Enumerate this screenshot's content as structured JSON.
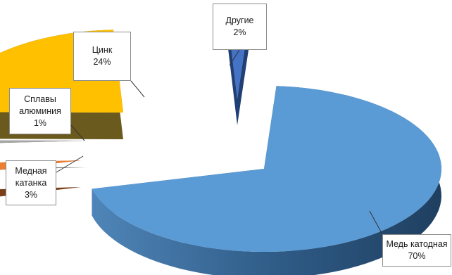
{
  "chart_data": {
    "type": "pie",
    "title": "",
    "categories": [
      "Медь катодная",
      "Медная катанка",
      "Сплавы алюминия",
      "Цинк",
      "Другие"
    ],
    "values": [
      70,
      3,
      1,
      24,
      2
    ],
    "labels": [
      {
        "name": "Медь катодная",
        "value": "70%"
      },
      {
        "name": "Медная катанка",
        "value": "3%"
      },
      {
        "name": "Сплавы алюминия",
        "value": "1%"
      },
      {
        "name": "Цинк",
        "value": "24%"
      },
      {
        "name": "Другие",
        "value": "2%"
      }
    ],
    "colors": [
      "#5B9BD5",
      "#ED7D31",
      "#A5A5A5",
      "#FFC000",
      "#4472C4"
    ],
    "exploded": true,
    "three_d": true,
    "legend": "none"
  }
}
